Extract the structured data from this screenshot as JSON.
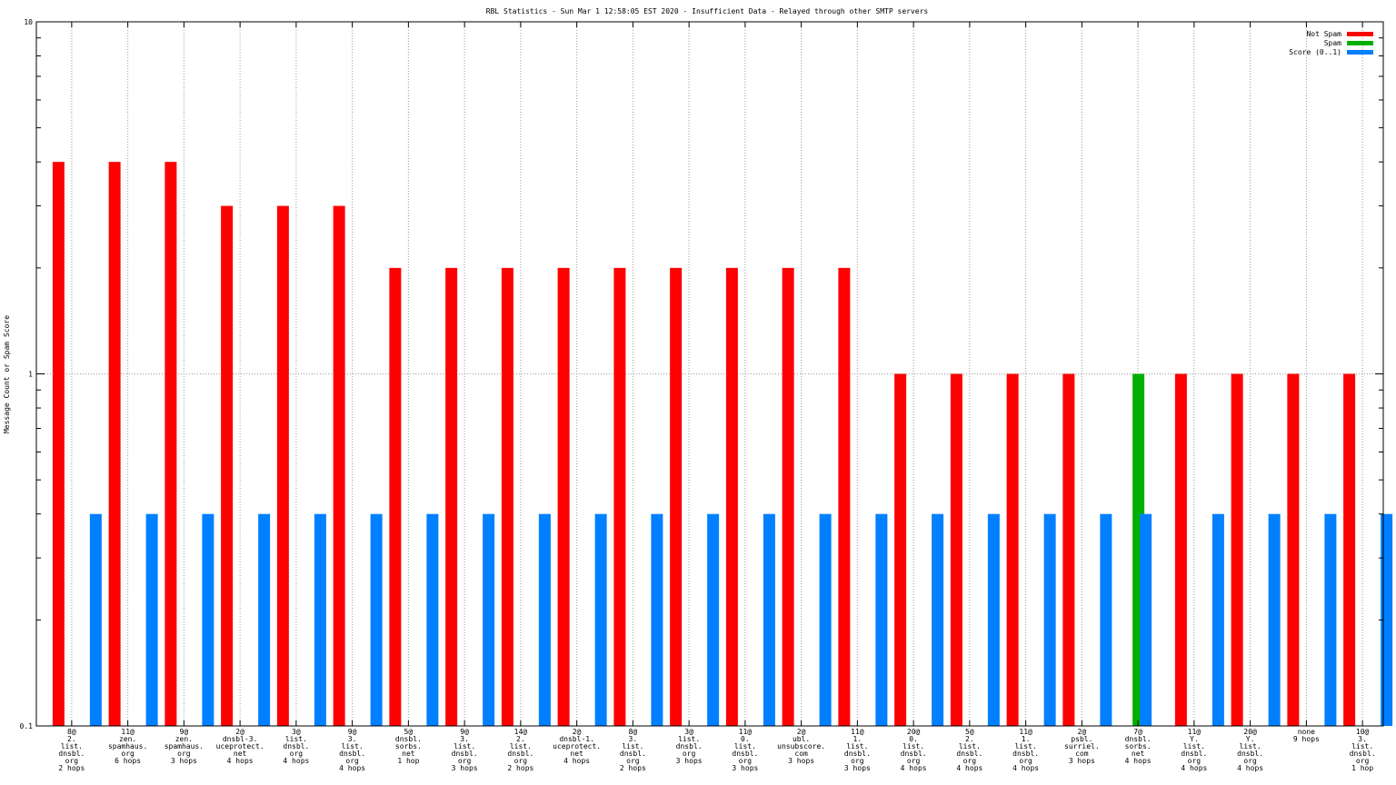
{
  "chart_data": {
    "type": "bar",
    "title": "RBL Statistics - Sun Mar  1 12:58:05 EST 2020 - Insufficient Data - Relayed through other SMTP servers",
    "ylabel": "Message Count or Spam Score",
    "xlabel": "",
    "yscale": "log",
    "ylim": [
      0.1,
      10
    ],
    "yticks": [
      {
        "value": 10,
        "label": "10"
      },
      {
        "value": 1,
        "label": "1"
      },
      {
        "value": 0.1,
        "label": "0.1"
      }
    ],
    "grid": true,
    "legend_position": "top-right",
    "categories": [
      [
        "8@",
        "2.",
        "list.",
        "dnsbl.",
        "org",
        "2 hops"
      ],
      [
        "11@",
        "zen.",
        "spamhaus.",
        "org",
        "6 hops"
      ],
      [
        "9@",
        "zen.",
        "spamhaus.",
        "org",
        "3 hops"
      ],
      [
        "2@",
        "dnsbl-3.",
        "uceprotect.",
        "net",
        "4 hops"
      ],
      [
        "3@",
        "list.",
        "dnsbl.",
        "org",
        "4 hops"
      ],
      [
        "9@",
        "3.",
        "list.",
        "dnsbl.",
        "org",
        "4 hops"
      ],
      [
        "5@",
        "dnsbl.",
        "sorbs.",
        "net",
        "1 hop"
      ],
      [
        "9@",
        "3.",
        "list.",
        "dnsbl.",
        "org",
        "3 hops"
      ],
      [
        "14@",
        "2.",
        "list.",
        "dnsbl.",
        "org",
        "2 hops"
      ],
      [
        "2@",
        "dnsbl-1.",
        "uceprotect.",
        "net",
        "4 hops"
      ],
      [
        "8@",
        "3.",
        "list.",
        "dnsbl.",
        "org",
        "2 hops"
      ],
      [
        "3@",
        "list.",
        "dnsbl.",
        "org",
        "3 hops"
      ],
      [
        "11@",
        "0.",
        "list.",
        "dnsbl.",
        "org",
        "3 hops"
      ],
      [
        "2@",
        "ubl.",
        "unsubscore.",
        "com",
        "3 hops"
      ],
      [
        "11@",
        "1.",
        "list.",
        "dnsbl.",
        "org",
        "3 hops"
      ],
      [
        "20@",
        "0.",
        "list.",
        "dnsbl.",
        "org",
        "4 hops"
      ],
      [
        "5@",
        "2.",
        "list.",
        "dnsbl.",
        "org",
        "4 hops"
      ],
      [
        "11@",
        "1.",
        "list.",
        "dnsbl.",
        "org",
        "4 hops"
      ],
      [
        "2@",
        "psbl.",
        "surriel.",
        "com",
        "3 hops"
      ],
      [
        "7@",
        "dnsbl.",
        "sorbs.",
        "net",
        "4 hops"
      ],
      [
        "11@",
        "Y.",
        "list.",
        "dnsbl.",
        "org",
        "4 hops"
      ],
      [
        "20@",
        "Y.",
        "list.",
        "dnsbl.",
        "org",
        "4 hops"
      ],
      [
        "none",
        "9 hops"
      ],
      [
        "10@",
        "3.",
        "list.",
        "dnsbl.",
        "org",
        "1 hop"
      ]
    ],
    "series": [
      {
        "name": "Not Spam",
        "color": "#ff0000",
        "values": [
          4,
          4,
          4,
          3,
          3,
          3,
          2,
          2,
          2,
          2,
          2,
          2,
          2,
          2,
          2,
          1,
          1,
          1,
          1,
          null,
          1,
          1,
          1,
          1
        ]
      },
      {
        "name": "Spam",
        "color": "#00b000",
        "values": [
          null,
          null,
          null,
          null,
          null,
          null,
          null,
          null,
          null,
          null,
          null,
          null,
          null,
          null,
          null,
          null,
          null,
          null,
          null,
          1,
          null,
          null,
          null,
          null
        ]
      },
      {
        "name": "Score (0..1)",
        "color": "#0080ff",
        "values": [
          0.4,
          0.4,
          0.4,
          0.4,
          0.4,
          0.4,
          0.4,
          0.4,
          0.4,
          0.4,
          0.4,
          0.4,
          0.4,
          0.4,
          0.4,
          0.4,
          0.4,
          0.4,
          0.4,
          0.4,
          0.4,
          0.4,
          0.4,
          0.4
        ]
      }
    ]
  }
}
